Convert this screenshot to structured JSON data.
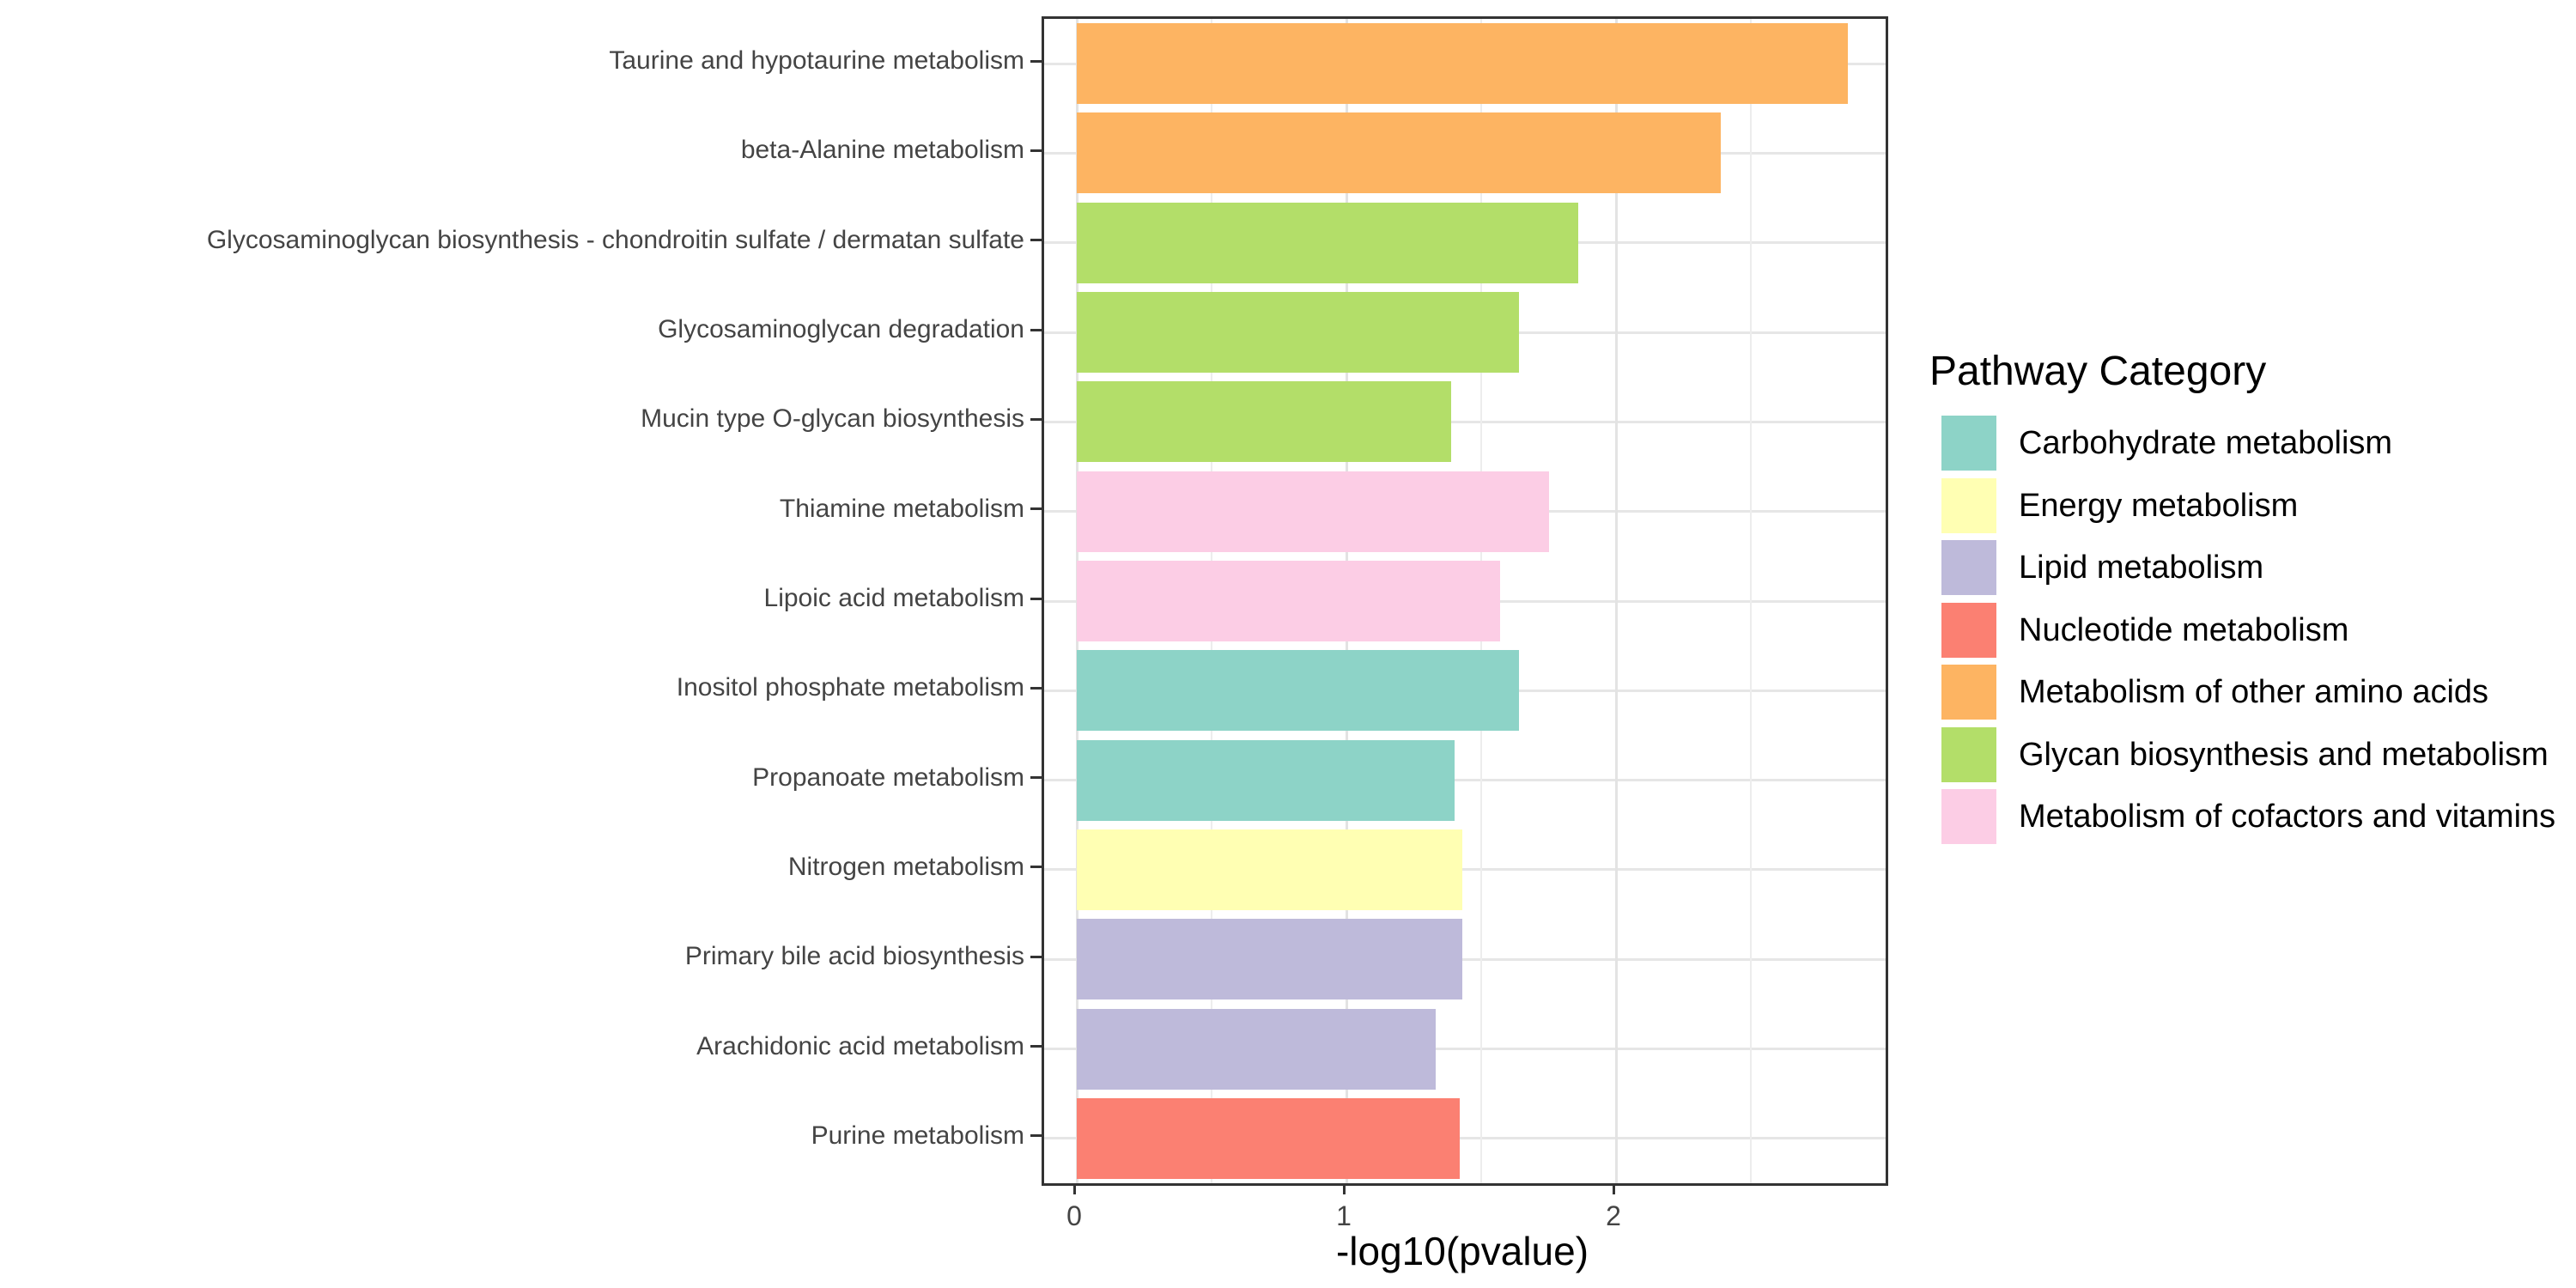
{
  "chart_data": {
    "type": "bar",
    "orientation": "horizontal",
    "title": "",
    "xlabel": "-log10(pvalue)",
    "ylabel": "",
    "xlim": [
      0,
      3.0
    ],
    "x_major_ticks": [
      0,
      1,
      2
    ],
    "x_minor_gridlines": [
      0.5,
      1.5,
      2.5
    ],
    "grid": true,
    "legend_position": "right",
    "legend_title": "Pathway Category",
    "bars": [
      {
        "pathway": "Taurine and hypotaurine metabolism",
        "category": "Metabolism of other amino acids",
        "value": 2.86
      },
      {
        "pathway": "beta-Alanine metabolism",
        "category": "Metabolism of other amino acids",
        "value": 2.39
      },
      {
        "pathway": "Glycosaminoglycan biosynthesis - chondroitin sulfate / dermatan sulfate",
        "category": "Glycan biosynthesis and metabolism",
        "value": 1.86
      },
      {
        "pathway": "Glycosaminoglycan degradation",
        "category": "Glycan biosynthesis and metabolism",
        "value": 1.64
      },
      {
        "pathway": "Mucin type O-glycan biosynthesis",
        "category": "Glycan biosynthesis and metabolism",
        "value": 1.39
      },
      {
        "pathway": "Thiamine metabolism",
        "category": "Metabolism of cofactors and vitamins",
        "value": 1.75
      },
      {
        "pathway": "Lipoic acid metabolism",
        "category": "Metabolism of cofactors and vitamins",
        "value": 1.57
      },
      {
        "pathway": "Inositol phosphate metabolism",
        "category": "Carbohydrate metabolism",
        "value": 1.64
      },
      {
        "pathway": "Propanoate metabolism",
        "category": "Carbohydrate metabolism",
        "value": 1.4
      },
      {
        "pathway": "Nitrogen metabolism",
        "category": "Energy metabolism",
        "value": 1.43
      },
      {
        "pathway": "Primary bile acid biosynthesis",
        "category": "Lipid metabolism",
        "value": 1.43
      },
      {
        "pathway": "Arachidonic acid metabolism",
        "category": "Lipid metabolism",
        "value": 1.33
      },
      {
        "pathway": "Purine metabolism",
        "category": "Nucleotide metabolism",
        "value": 1.42
      }
    ],
    "legend_entries": [
      {
        "label": "Carbohydrate metabolism",
        "color": "#8DD3C7"
      },
      {
        "label": "Energy metabolism",
        "color": "#FFFFB3"
      },
      {
        "label": "Lipid metabolism",
        "color": "#BEBADA"
      },
      {
        "label": "Nucleotide metabolism",
        "color": "#FB8072"
      },
      {
        "label": "Metabolism of other amino acids",
        "color": "#FDB462"
      },
      {
        "label": "Glycan biosynthesis and metabolism",
        "color": "#B3DE69"
      },
      {
        "label": "Metabolism of cofactors and vitamins",
        "color": "#FCCDE5"
      }
    ],
    "colors": {
      "Carbohydrate metabolism": "#8DD3C7",
      "Energy metabolism": "#FFFFB3",
      "Lipid metabolism": "#BEBADA",
      "Nucleotide metabolism": "#FB8072",
      "Metabolism of other amino acids": "#FDB462",
      "Glycan biosynthesis and metabolism": "#B3DE69",
      "Metabolism of cofactors and vitamins": "#FCCDE5"
    },
    "style": {
      "panel_border_color": "#333333",
      "grid_major_color": "#e3e3e3",
      "grid_minor_color": "#ededed",
      "axis_text_color": "#444444",
      "tick_color": "#333333",
      "background": "#ffffff"
    }
  }
}
